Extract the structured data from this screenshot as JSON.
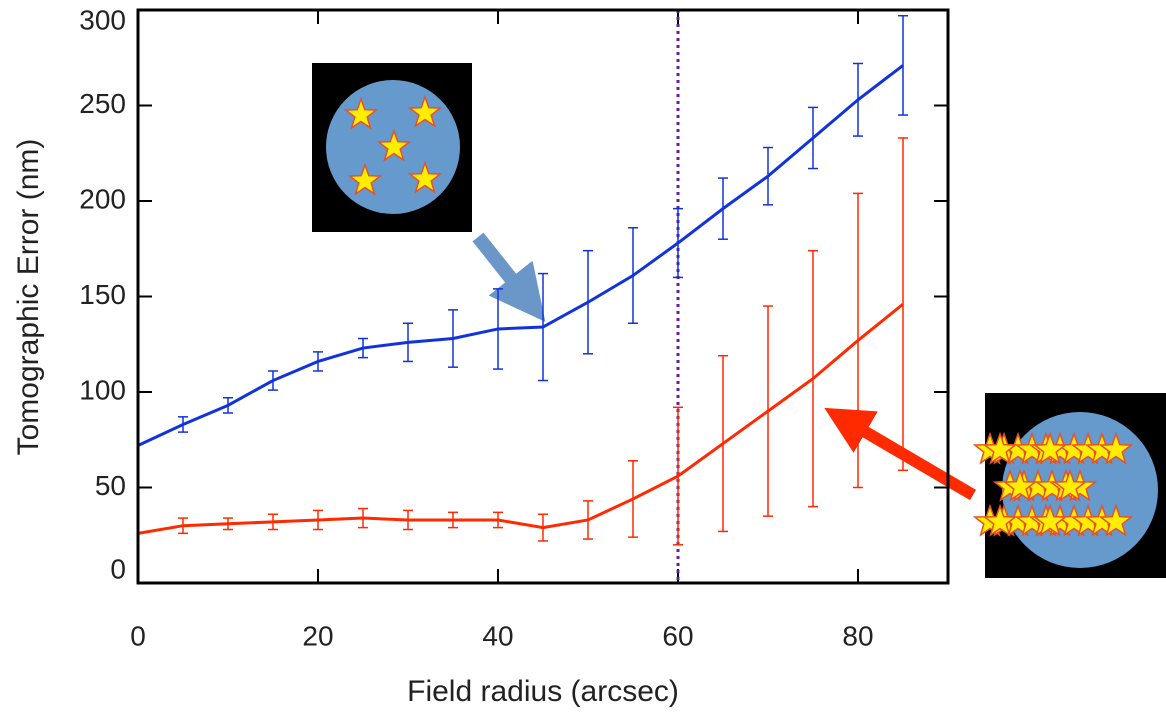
{
  "chart_data": {
    "type": "line",
    "xlabel": "Field radius (arcsec)",
    "ylabel": "Tomographic Error (nm)",
    "x": [
      0,
      5,
      10,
      15,
      20,
      25,
      30,
      35,
      40,
      45,
      50,
      55,
      60,
      65,
      70,
      75,
      80,
      85
    ],
    "series": [
      {
        "color": "#1133dd",
        "values": [
          72,
          83,
          93,
          106,
          116,
          123,
          126,
          128,
          133,
          134,
          147,
          161,
          178,
          196,
          213,
          233,
          253,
          271
        ],
        "errors": [
          null,
          4,
          4,
          5,
          5,
          5,
          10,
          15,
          21,
          28,
          27,
          25,
          18,
          16,
          15,
          16,
          19,
          26
        ]
      },
      {
        "color": "#ff2a00",
        "values": [
          26,
          30,
          31,
          32,
          33,
          34,
          33,
          33,
          33,
          29,
          33,
          44,
          56,
          73,
          90,
          107,
          127,
          146
        ],
        "errors": [
          null,
          4,
          3,
          4,
          5,
          5,
          5,
          4,
          4,
          7,
          10,
          20,
          36,
          46,
          55,
          67,
          77,
          87
        ]
      }
    ],
    "vline": 60,
    "vline_color": "#6a1aa8",
    "xlim": [
      0,
      90
    ],
    "xticks": [
      0,
      20,
      40,
      60,
      80
    ],
    "ylim": [
      0,
      300
    ],
    "yticks": [
      0,
      50,
      100,
      150,
      200,
      250,
      300
    ]
  }
}
